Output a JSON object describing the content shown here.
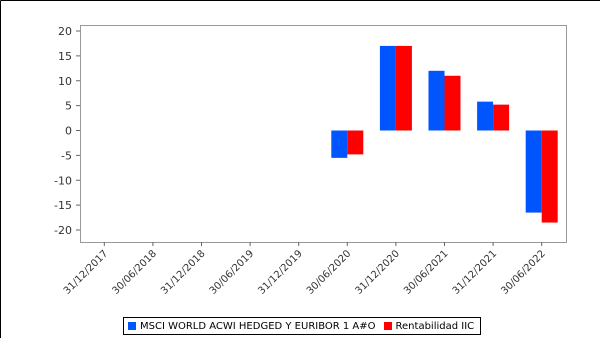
{
  "chart_data": {
    "type": "bar",
    "categories": [
      "31/12/2017",
      "30/06/2018",
      "31/12/2018",
      "30/06/2019",
      "31/12/2019",
      "30/06/2020",
      "31/12/2020",
      "30/06/2021",
      "31/12/2021",
      "30/06/2022"
    ],
    "series": [
      {
        "name": "MSCI WORLD ACWI HEDGED Y EURIBOR 1 A#O",
        "color": "#0055ff",
        "values": [
          null,
          null,
          null,
          null,
          null,
          -5.5,
          17.0,
          12.0,
          5.8,
          -16.5
        ]
      },
      {
        "name": "Rentabilidad IIC",
        "color": "#ff0000",
        "values": [
          null,
          null,
          null,
          null,
          null,
          -4.8,
          17.0,
          11.0,
          5.2,
          -18.5
        ]
      }
    ],
    "yticks": [
      20,
      15,
      10,
      5,
      0,
      -5,
      -10,
      -15,
      -20
    ],
    "ylim": [
      -22,
      20
    ],
    "grid": false,
    "legend_position": "bottom",
    "title": "",
    "xlabel": "",
    "ylabel": ""
  }
}
